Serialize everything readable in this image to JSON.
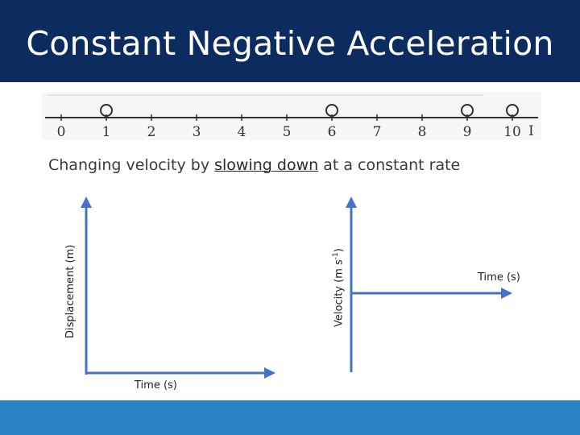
{
  "slide": {
    "title": "Constant Negative Acceleration",
    "subtitle_before": "Changing velocity by ",
    "subtitle_emphasis": "slowing down",
    "subtitle_after": " at a constant rate"
  },
  "number_line": {
    "ticks": [
      "0",
      "1",
      "2",
      "3",
      "4",
      "5",
      "6",
      "7",
      "8",
      "9",
      "10"
    ],
    "end_label": "I",
    "ball_positions": [
      1,
      6,
      9,
      10
    ]
  },
  "graph_left": {
    "y_label": "Displacement (m)",
    "x_label": "Time (s)"
  },
  "graph_right": {
    "y_label_base": "Velocity (m s",
    "y_label_sup": "-1",
    "y_label_close": ")",
    "x_label": "Time (s)"
  },
  "colors": {
    "header": "#0c2b5e",
    "footer": "#2a84c4",
    "axis": "#4472c4"
  }
}
